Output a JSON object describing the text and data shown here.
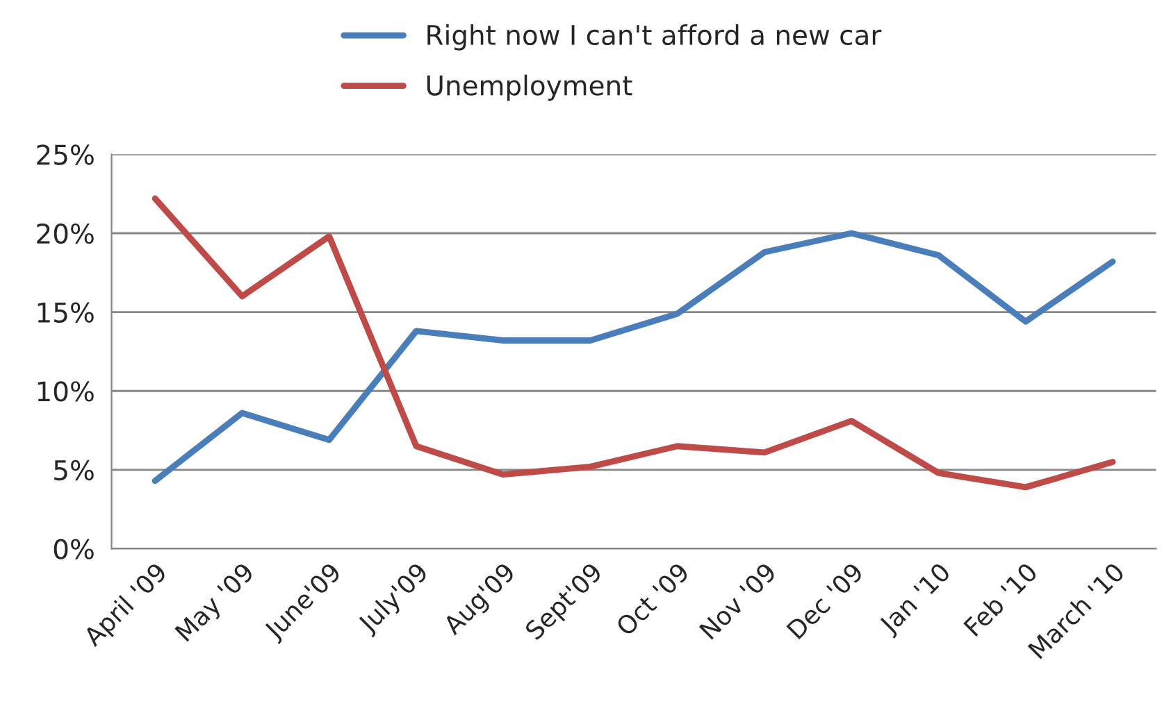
{
  "chart_data": {
    "type": "line",
    "categories": [
      "April '09",
      "May '09",
      "June'09",
      "July'09",
      "Aug'09",
      "Sept'09",
      "Oct '09",
      "Nov '09",
      "Dec '09",
      "Jan '10",
      "Feb '10",
      "March '10"
    ],
    "series": [
      {
        "name": "Right now I can't afford a new car",
        "color": "#4a7ebb",
        "values": [
          4.3,
          8.6,
          6.9,
          13.8,
          13.2,
          13.2,
          14.9,
          18.8,
          20.0,
          18.6,
          14.4,
          18.2
        ]
      },
      {
        "name": "Unemployment",
        "color": "#be4b48",
        "values": [
          22.2,
          16.0,
          19.8,
          6.5,
          4.7,
          5.2,
          6.5,
          6.1,
          8.1,
          4.8,
          3.9,
          5.5
        ]
      }
    ],
    "ylim": [
      0,
      25
    ],
    "yticks": [
      {
        "value": 0,
        "label": "0%"
      },
      {
        "value": 5,
        "label": "5%"
      },
      {
        "value": 10,
        "label": "10%"
      },
      {
        "value": 15,
        "label": "15%"
      },
      {
        "value": 20,
        "label": "20%"
      },
      {
        "value": 25,
        "label": "25%"
      }
    ],
    "grid": "y",
    "legend": "top",
    "marker": "none",
    "line_style": "solid"
  }
}
